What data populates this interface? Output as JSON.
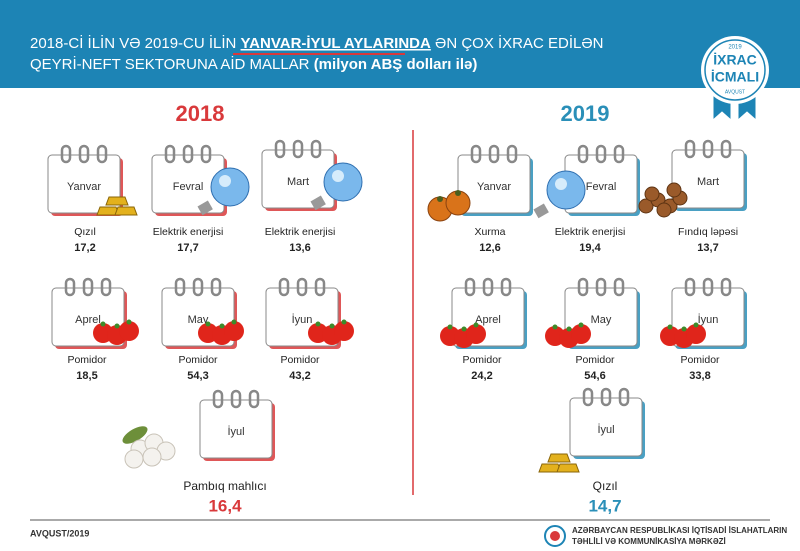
{
  "header": {
    "title_parts": [
      "2018-Cİ İLİN VƏ 2019-CU İLİN ",
      "YANVAR-İYUL AYLARINDA",
      " ƏN ÇOX İXRAC EDİLƏN"
    ],
    "subtitle_parts": [
      "QEYRİ-NEFT SEKTORUNA AİD MALLAR ",
      "(milyon ABŞ dolları ilə)"
    ]
  },
  "badge": {
    "year": "2019",
    "line1": "İXRAC",
    "line2": "İCMALI",
    "month": "AVQUST"
  },
  "years": [
    {
      "year": "2018",
      "items": [
        {
          "month": "Yanvar",
          "product": "Qızıl",
          "value": "17,2"
        },
        {
          "month": "Fevral",
          "product": "Elektrik enerjisi",
          "value": "17,7"
        },
        {
          "month": "Mart",
          "product": "Elektrik enerjisi",
          "value": "13,6"
        },
        {
          "month": "Aprel",
          "product": "Pomidor",
          "value": "18,5"
        },
        {
          "month": "May",
          "product": "Pomidor",
          "value": "54,3"
        },
        {
          "month": "İyun",
          "product": "Pomidor",
          "value": "43,2"
        },
        {
          "month": "İyul",
          "product": "Pambıq mahlıcı",
          "value": "16,4"
        }
      ]
    },
    {
      "year": "2019",
      "items": [
        {
          "month": "Yanvar",
          "product": "Xurma",
          "value": "12,6"
        },
        {
          "month": "Fevral",
          "product": "Elektrik enerjisi",
          "value": "19,4"
        },
        {
          "month": "Mart",
          "product": "Fındıq ləpəsi",
          "value": "13,7"
        },
        {
          "month": "Aprel",
          "product": "Pomidor",
          "value": "24,2"
        },
        {
          "month": "May",
          "product": "Pomidor",
          "value": "54,6"
        },
        {
          "month": "İyun",
          "product": "Pomidor",
          "value": "33,8"
        },
        {
          "month": "İyul",
          "product": "Qızıl",
          "value": "14,7"
        }
      ]
    }
  ],
  "footer": {
    "date": "AVQUST/2019",
    "org_line1": "AZƏRBAYCAN RESPUBLİKASI İQTİSADİ İSLAHATLARIN",
    "org_line2": "TƏHLİLİ VƏ KOMMUNİKASİYA MƏRKƏZİ"
  }
}
